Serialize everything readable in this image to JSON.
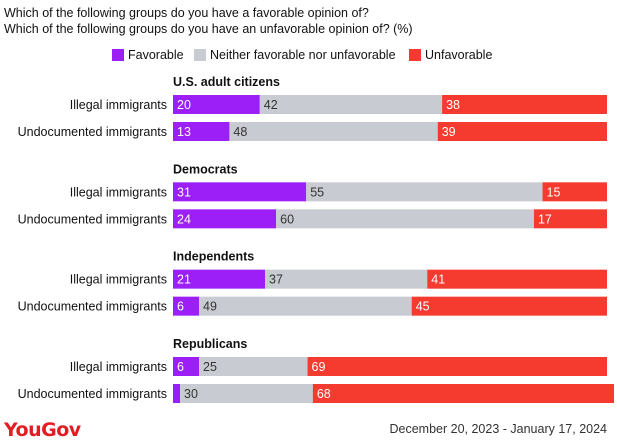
{
  "titles": {
    "line1": "Which of the following groups do you have a favorable opinion of?",
    "line2": "Which of the following groups do you have an unfavorable opinion of? (%)"
  },
  "legend": {
    "favorable": "Favorable",
    "neither": "Neither favorable nor unfavorable",
    "unfavorable": "Unfavorable"
  },
  "colors": {
    "favorable": "#9b1ff6",
    "neither": "#c8cbd1",
    "unfavorable": "#f53a2f"
  },
  "footer": {
    "brand": "YouGov",
    "date_range": "December 20, 2023 - January 17, 2024"
  },
  "chart_data": {
    "type": "bar",
    "orientation": "horizontal",
    "stacked": true,
    "xlim": [
      0,
      100
    ],
    "series_order": [
      "favorable",
      "neither",
      "unfavorable"
    ],
    "groups": [
      {
        "name": "U.S. adult citizens",
        "rows": [
          {
            "label": "Illegal immigrants",
            "favorable": 20,
            "neither": 42,
            "unfavorable": 38
          },
          {
            "label": "Undocumented immigrants",
            "favorable": 13,
            "neither": 48,
            "unfavorable": 39
          }
        ]
      },
      {
        "name": "Democrats",
        "rows": [
          {
            "label": "Illegal immigrants",
            "favorable": 31,
            "neither": 55,
            "unfavorable": 15
          },
          {
            "label": "Undocumented immigrants",
            "favorable": 24,
            "neither": 60,
            "unfavorable": 17
          }
        ]
      },
      {
        "name": "Independents",
        "rows": [
          {
            "label": "Illegal immigrants",
            "favorable": 21,
            "neither": 37,
            "unfavorable": 41
          },
          {
            "label": "Undocumented immigrants",
            "favorable": 6,
            "neither": 49,
            "unfavorable": 45
          }
        ]
      },
      {
        "name": "Republicans",
        "rows": [
          {
            "label": "Illegal immigrants",
            "favorable": 6,
            "neither": 25,
            "unfavorable": 69
          },
          {
            "label": "Undocumented immigrants",
            "favorable": null,
            "neither": 30,
            "unfavorable": 68
          }
        ]
      }
    ]
  }
}
